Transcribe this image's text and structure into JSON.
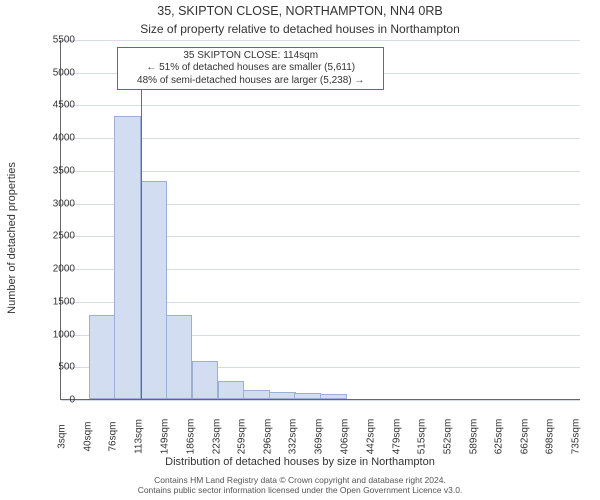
{
  "title_main": "35, SKIPTON CLOSE, NORTHAMPTON, NN4 0RB",
  "title_sub": "Size of property relative to detached houses in Northampton",
  "ylabel": "Number of detached properties",
  "xlabel": "Distribution of detached houses by size in Northampton",
  "footer_line1": "Contains HM Land Registry data © Crown copyright and database right 2024.",
  "footer_line2": "Contains public sector information licensed under the Open Government Licence v3.0.",
  "chart": {
    "type": "histogram",
    "xlim_min": 0,
    "xlim_max": 740,
    "ylim_min": 0,
    "ylim_max": 5500,
    "ytick_step": 500,
    "yticks": [
      0,
      500,
      1000,
      1500,
      2000,
      2500,
      3000,
      3500,
      4000,
      4500,
      5000,
      5500
    ],
    "xticks": [
      3,
      40,
      76,
      113,
      149,
      186,
      223,
      259,
      296,
      332,
      369,
      406,
      442,
      479,
      515,
      552,
      589,
      625,
      662,
      698,
      735
    ],
    "xtick_labels": [
      "3sqm",
      "40sqm",
      "76sqm",
      "113sqm",
      "149sqm",
      "186sqm",
      "223sqm",
      "259sqm",
      "296sqm",
      "332sqm",
      "369sqm",
      "406sqm",
      "442sqm",
      "479sqm",
      "515sqm",
      "552sqm",
      "589sqm",
      "625sqm",
      "662sqm",
      "698sqm",
      "735sqm"
    ],
    "bar_width_sqm": 36.6,
    "bar_values": [
      0,
      1250,
      4300,
      3300,
      1250,
      550,
      250,
      100,
      80,
      60,
      40,
      0,
      0,
      0,
      0,
      0,
      0,
      0,
      0,
      0
    ],
    "bar_starts_sqm": [
      3,
      40,
      76,
      113,
      149,
      186,
      223,
      259,
      296,
      332,
      369,
      406,
      442,
      479,
      515,
      552,
      589,
      625,
      662,
      698
    ],
    "bar_fill_color": "#d2ddf2",
    "bar_stroke_color": "#9eafd6",
    "grid_color": "#d7dbe3",
    "background_color": "#ffffff",
    "axis_color": "#666666",
    "text_color": "#333333",
    "fontsize_title": 12.5,
    "fontsize_subtitle": 12,
    "fontsize_axis_label": 11,
    "fontsize_tick": 10,
    "annotation": {
      "line1": "35 SKIPTON CLOSE: 114sqm",
      "line2": "← 51% of detached houses are smaller (5,611)",
      "line3": "48% of semi-detached houses are larger (5,238) →",
      "border_color": "#c24646",
      "background_color": "#ffffff",
      "fontsize": 10,
      "left_sqm": 80,
      "right_sqm": 460,
      "top_value": 5400,
      "bottom_value": 4800,
      "marker_x_sqm": 114,
      "marker_top_value": 4800
    }
  }
}
